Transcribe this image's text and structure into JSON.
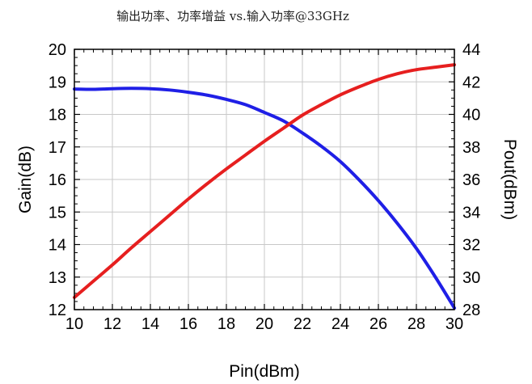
{
  "chart_data": {
    "type": "line",
    "title": "输出功率、功率增益 vs.输入功率@33GHz",
    "xlabel": "Pin(dBm)",
    "ylabel_left": "Gain(dB)",
    "ylabel_right": "Pout(dBm)",
    "xlim": [
      10,
      30
    ],
    "ylim_left": [
      12,
      20
    ],
    "ylim_right": [
      28,
      44
    ],
    "x_ticks": [
      "10",
      "12",
      "14",
      "16",
      "18",
      "20",
      "22",
      "24",
      "26",
      "28",
      "30"
    ],
    "y_ticks_left": [
      "12",
      "13",
      "14",
      "15",
      "16",
      "17",
      "18",
      "19",
      "20"
    ],
    "y_ticks_right": [
      "28",
      "30",
      "32",
      "34",
      "36",
      "38",
      "40",
      "42",
      "44"
    ],
    "grid": true,
    "legend": "none",
    "series": [
      {
        "axis": "left",
        "color": "#1f1fe6",
        "x": [
          10,
          11,
          12,
          13,
          14,
          15,
          16,
          17,
          18,
          19,
          20,
          21,
          22,
          23,
          24,
          25,
          26,
          27,
          28,
          29,
          30
        ],
        "values": [
          18.78,
          18.77,
          18.79,
          18.8,
          18.79,
          18.75,
          18.68,
          18.59,
          18.46,
          18.3,
          18.06,
          17.8,
          17.43,
          17.02,
          16.55,
          15.98,
          15.35,
          14.65,
          13.88,
          13.0,
          12.05
        ]
      },
      {
        "axis": "right",
        "color": "#e61f1f",
        "x": [
          10,
          11,
          12,
          13,
          14,
          15,
          16,
          17,
          18,
          19,
          20,
          21,
          22,
          23,
          24,
          25,
          26,
          27,
          28,
          29,
          30
        ],
        "values": [
          28.75,
          29.75,
          30.75,
          31.8,
          32.8,
          33.8,
          34.8,
          35.75,
          36.65,
          37.5,
          38.35,
          39.15,
          39.95,
          40.6,
          41.2,
          41.7,
          42.15,
          42.5,
          42.75,
          42.9,
          43.05
        ]
      }
    ]
  }
}
